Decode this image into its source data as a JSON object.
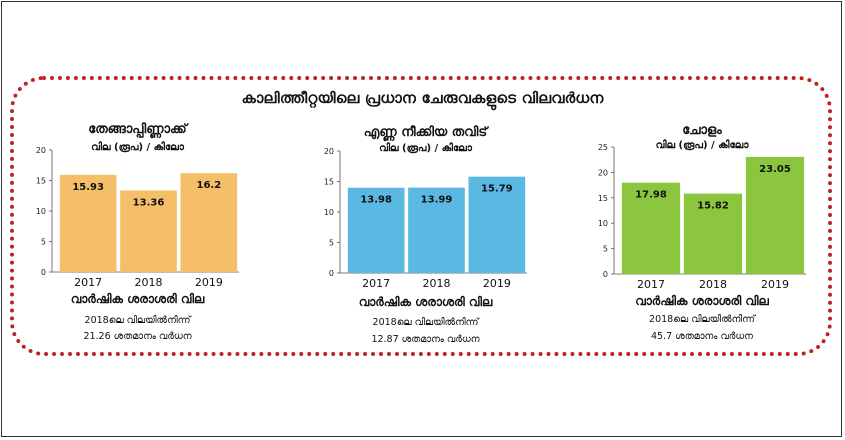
{
  "page": {
    "title": "കാലിത്തീറ്റയിലെ പ്രധാന ചേരുവകളുടെ വിലവർധന"
  },
  "chart_data": [
    {
      "type": "bar",
      "title": "തേങ്ങാപ്പിണ്ണാക്ക്",
      "subtitle": "വില (രൂപ) / കിലോ",
      "xlabel": "വാർഷിക ശരാശരി വില",
      "note_line1": "2018ലെ വിലയിൽനിന്ന്",
      "note_line2": "21.26 ശതമാനം വർധന",
      "categories": [
        "2017",
        "2018",
        "2019"
      ],
      "values": [
        15.93,
        13.36,
        16.2
      ],
      "value_labels": [
        "15.93",
        "13.36",
        "16.2"
      ],
      "ylim": [
        0,
        20
      ],
      "yticks": [
        0,
        5,
        10,
        15,
        20
      ],
      "color": "#f5bf6a"
    },
    {
      "type": "bar",
      "title": "എണ്ണ നീക്കിയ തവിട്",
      "subtitle": "വില (രൂപ) / കിലോ",
      "xlabel": "വാർഷിക ശരാശരി വില",
      "note_line1": "2018ലെ വിലയിൽനിന്ന്",
      "note_line2": "12.87 ശതമാനം വർധന",
      "categories": [
        "2017",
        "2018",
        "2019"
      ],
      "values": [
        13.98,
        13.99,
        15.79
      ],
      "value_labels": [
        "13.98",
        "13.99",
        "15.79"
      ],
      "ylim": [
        0,
        20
      ],
      "yticks": [
        0,
        5,
        10,
        15,
        20
      ],
      "color": "#5ab8e2"
    },
    {
      "type": "bar",
      "title": "ചോളം",
      "subtitle": "വില (രൂപ) / കിലോ",
      "xlabel": "വാർഷിക ശരാശരി വില",
      "note_line1": "2018ലെ വിലയിൽനിന്ന്",
      "note_line2": "45.7 ശതമാനം വർധന",
      "categories": [
        "2017",
        "2018",
        "2019"
      ],
      "values": [
        17.98,
        15.82,
        23.05
      ],
      "value_labels": [
        "17.98",
        "15.82",
        "23.05"
      ],
      "ylim": [
        0,
        25
      ],
      "yticks": [
        0,
        5,
        10,
        15,
        20,
        25
      ],
      "color": "#8cc63f"
    }
  ]
}
